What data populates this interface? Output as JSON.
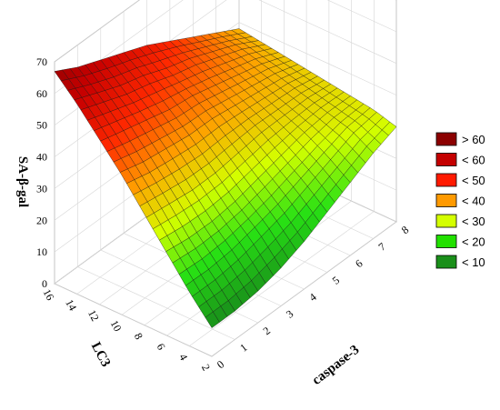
{
  "chart_data": {
    "type": "surface3d",
    "title": "",
    "xlabel": "caspase-3",
    "ylabel": "LC3",
    "zlabel": "SA-β-gal",
    "xlim": [
      0,
      8
    ],
    "ylim": [
      2,
      16
    ],
    "zlim": [
      0,
      70
    ],
    "x_ticks": [
      "0",
      "1",
      "2",
      "3",
      "4",
      "5",
      "6",
      "7",
      "8"
    ],
    "y_ticks": [
      "2",
      "4",
      "6",
      "8",
      "10",
      "12",
      "14",
      "16"
    ],
    "z_ticks": [
      "0",
      "10",
      "20",
      "30",
      "40",
      "50",
      "60",
      "70"
    ],
    "grid_x": [
      0,
      1,
      2,
      3,
      4,
      5,
      6,
      7,
      8
    ],
    "grid_y": [
      2,
      4,
      6,
      8,
      10,
      12,
      14,
      16
    ],
    "grid_z": [
      [
        9,
        9,
        10,
        12,
        15,
        19,
        23,
        27,
        30
      ],
      [
        17,
        17,
        18,
        20,
        22,
        25,
        28,
        31,
        32
      ],
      [
        26,
        25,
        25,
        26,
        28,
        30,
        32,
        33,
        33
      ],
      [
        35,
        34,
        33,
        33,
        34,
        35,
        35,
        35,
        34
      ],
      [
        44,
        42,
        41,
        40,
        40,
        39,
        38,
        37,
        35
      ],
      [
        52,
        50,
        48,
        46,
        45,
        43,
        41,
        39,
        36
      ],
      [
        60,
        57,
        54,
        52,
        49,
        47,
        44,
        41,
        37
      ],
      [
        67,
        63,
        60,
        57,
        54,
        50,
        46,
        42,
        38
      ]
    ],
    "legend": {
      "position": "right",
      "entries": [
        {
          "label": "> 60",
          "color": "#8b0000"
        },
        {
          "label": "< 60",
          "color": "#c40000"
        },
        {
          "label": "< 50",
          "color": "#ff1a00"
        },
        {
          "label": "< 40",
          "color": "#ff9a00"
        },
        {
          "label": "< 30",
          "color": "#d4ff00"
        },
        {
          "label": "< 20",
          "color": "#22e000"
        },
        {
          "label": "< 10",
          "color": "#1a8f1a"
        }
      ]
    },
    "grid": true
  }
}
